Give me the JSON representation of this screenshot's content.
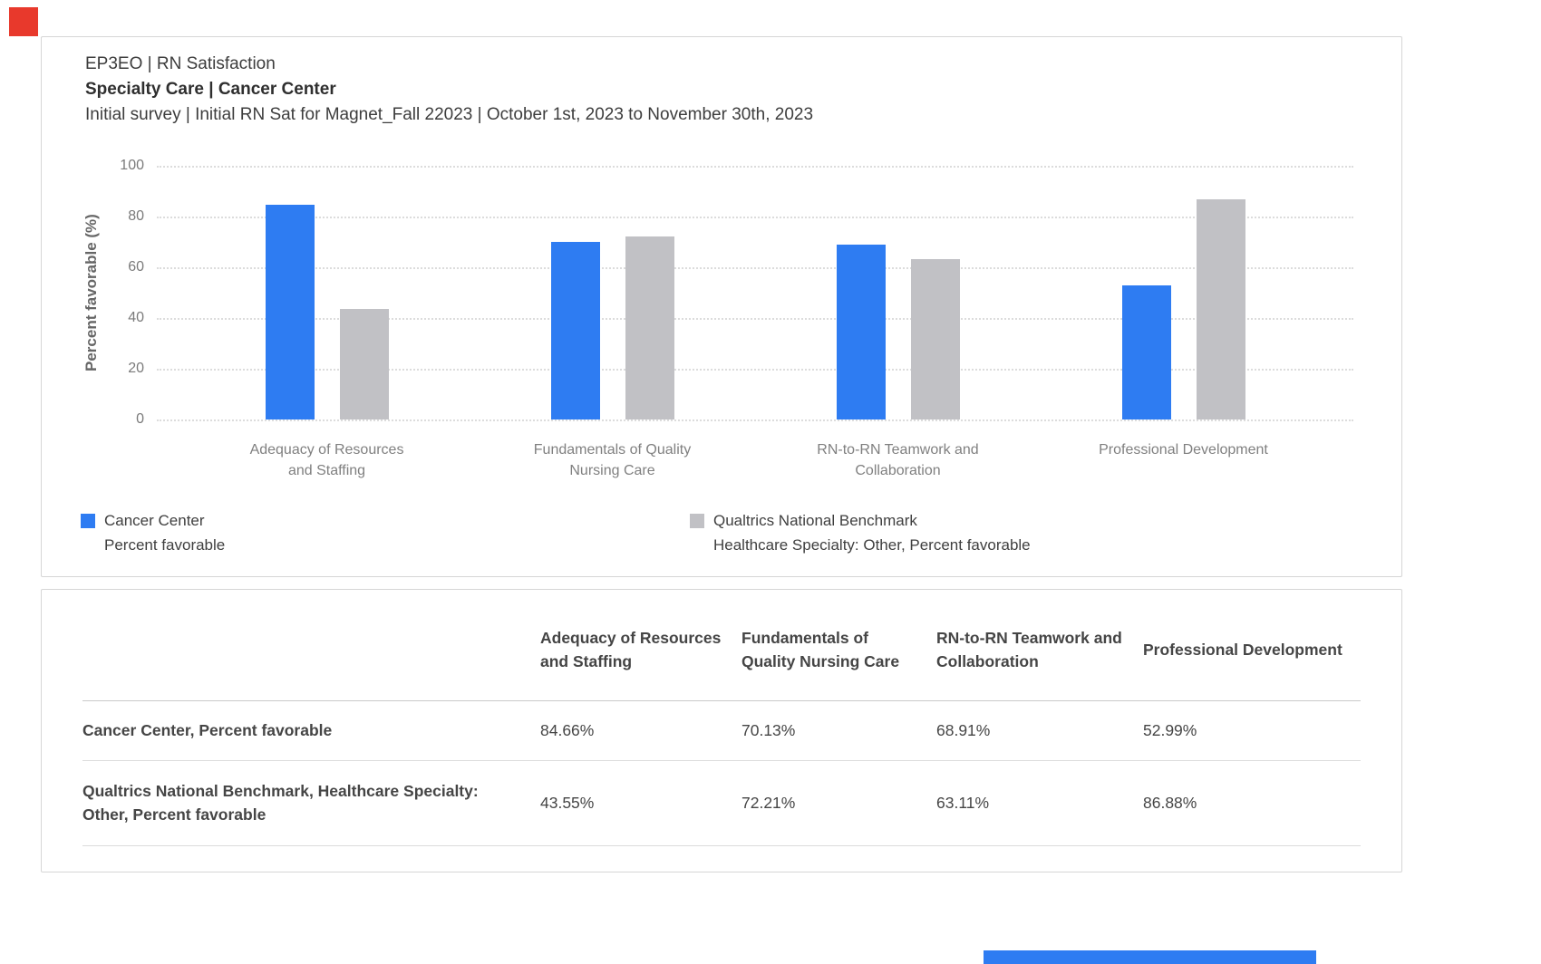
{
  "header": {
    "line1": "EP3EO | RN Satisfaction",
    "line2": "Specialty Care | Cancer Center",
    "line3": "Initial survey | Initial RN Sat for Magnet_Fall 22023 | October 1st, 2023 to November 30th, 2023"
  },
  "chart_data": {
    "type": "bar",
    "title": "EP3EO | RN Satisfaction",
    "subtitle": "Specialty Care | Cancer Center",
    "period": "Initial survey | Initial RN Sat for Magnet_Fall 22023 | October 1st, 2023 to November 30th, 2023",
    "ylabel": "Percent favorable (%)",
    "ylim": [
      0,
      100
    ],
    "yticks": [
      0,
      20,
      40,
      60,
      80,
      100
    ],
    "grid": "horizontal-dotted",
    "legend_position": "bottom",
    "categories": [
      "Adequacy of Resources and Staffing",
      "Fundamentals of Quality Nursing Care",
      "RN-to-RN Teamwork and Collaboration",
      "Professional Development"
    ],
    "series": [
      {
        "name": "Cancer Center",
        "sublabel": "Percent favorable",
        "color": "#2e7cf2",
        "values": [
          84.66,
          70.13,
          68.91,
          52.99
        ]
      },
      {
        "name": "Qualtrics National Benchmark",
        "sublabel": "Healthcare Specialty: Other, Percent favorable",
        "color": "#c1c1c5",
        "values": [
          43.55,
          72.21,
          63.11,
          86.88
        ]
      }
    ]
  },
  "table": {
    "column_headers": [
      "Adequacy of Resources and Staffing",
      "Fundamentals of Quality Nursing Care",
      "RN-to-RN Teamwork and Collaboration",
      "Professional Development"
    ],
    "rows": [
      {
        "label": "Cancer Center, Percent favorable",
        "values": [
          "84.66%",
          "70.13%",
          "68.91%",
          "52.99%"
        ]
      },
      {
        "label": "Qualtrics National Benchmark, Healthcare Specialty: Other, Percent favorable",
        "values": [
          "43.55%",
          "72.21%",
          "63.11%",
          "86.88%"
        ]
      }
    ]
  },
  "colors": {
    "accent_blue": "#2e7cf2",
    "benchmark_gray": "#c1c1c5",
    "logo_red": "#e8392c",
    "grid_gray": "#dcdcdc"
  }
}
